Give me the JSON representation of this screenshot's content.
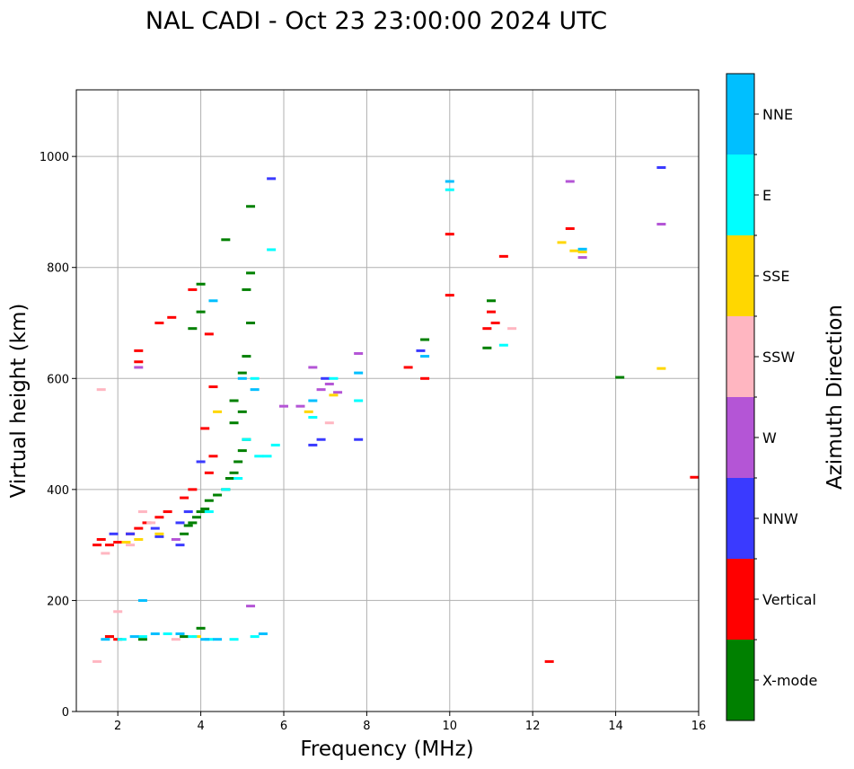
{
  "chart_data": {
    "type": "scatter",
    "title": "NAL CADI - Oct 23 23:00:00 2024 UTC",
    "xlabel": "Frequency (MHz)",
    "ylabel": "Virtual height (km)",
    "xlim": [
      1,
      16
    ],
    "ylim": [
      0,
      1120
    ],
    "xticks": [
      2,
      4,
      6,
      8,
      10,
      12,
      14,
      16
    ],
    "yticks": [
      0,
      200,
      400,
      600,
      800,
      1000
    ],
    "grid": true,
    "colorbar": {
      "label": "Azimuth Direction",
      "categories": [
        {
          "name": "X-mode",
          "color": "#008000"
        },
        {
          "name": "Vertical",
          "color": "#ff0000"
        },
        {
          "name": "NNW",
          "color": "#3a3aff"
        },
        {
          "name": "W",
          "color": "#b455d6"
        },
        {
          "name": "SSW",
          "color": "#ffb6c1"
        },
        {
          "name": "SSE",
          "color": "#ffd700"
        },
        {
          "name": "E",
          "color": "#00ffff"
        },
        {
          "name": "NNE",
          "color": "#00bfff"
        }
      ]
    },
    "series": [
      {
        "name": "X-mode",
        "points": [
          [
            3.6,
            320
          ],
          [
            3.7,
            335
          ],
          [
            3.8,
            340
          ],
          [
            3.9,
            350
          ],
          [
            4.0,
            360
          ],
          [
            4.1,
            365
          ],
          [
            4.2,
            380
          ],
          [
            4.4,
            390
          ],
          [
            4.6,
            400
          ],
          [
            4.7,
            420
          ],
          [
            4.8,
            430
          ],
          [
            4.9,
            450
          ],
          [
            5.0,
            470
          ],
          [
            5.1,
            490
          ],
          [
            5.0,
            540
          ],
          [
            5.0,
            610
          ],
          [
            5.1,
            640
          ],
          [
            5.2,
            700
          ],
          [
            5.1,
            760
          ],
          [
            5.2,
            790
          ],
          [
            4.0,
            720
          ],
          [
            3.8,
            690
          ],
          [
            4.0,
            150
          ],
          [
            3.6,
            135
          ],
          [
            2.6,
            130
          ],
          [
            1.8,
            135
          ],
          [
            4.8,
            520
          ],
          [
            4.8,
            560
          ],
          [
            4.0,
            770
          ],
          [
            4.6,
            850
          ],
          [
            5.2,
            910
          ],
          [
            9.4,
            670
          ],
          [
            10.9,
            655
          ],
          [
            14.1,
            602
          ],
          [
            11.0,
            740
          ]
        ]
      },
      {
        "name": "Vertical",
        "points": [
          [
            1.5,
            300
          ],
          [
            1.6,
            310
          ],
          [
            1.8,
            300
          ],
          [
            2.0,
            305
          ],
          [
            2.3,
            320
          ],
          [
            2.5,
            330
          ],
          [
            2.7,
            340
          ],
          [
            3.0,
            350
          ],
          [
            3.2,
            360
          ],
          [
            3.6,
            385
          ],
          [
            3.8,
            400
          ],
          [
            4.2,
            430
          ],
          [
            4.3,
            460
          ],
          [
            1.8,
            135
          ],
          [
            2.0,
            130
          ],
          [
            2.5,
            650
          ],
          [
            2.5,
            630
          ],
          [
            3.0,
            700
          ],
          [
            3.3,
            710
          ],
          [
            3.8,
            760
          ],
          [
            4.2,
            680
          ],
          [
            4.3,
            585
          ],
          [
            4.1,
            510
          ],
          [
            9.0,
            620
          ],
          [
            9.4,
            600
          ],
          [
            10.0,
            860
          ],
          [
            10.0,
            750
          ],
          [
            10.9,
            690
          ],
          [
            11.1,
            700
          ],
          [
            11.0,
            720
          ],
          [
            11.3,
            820
          ],
          [
            12.4,
            90
          ],
          [
            12.9,
            870
          ],
          [
            15.9,
            422
          ]
        ]
      },
      {
        "name": "NNW",
        "points": [
          [
            1.9,
            320
          ],
          [
            2.3,
            320
          ],
          [
            2.9,
            330
          ],
          [
            3.0,
            315
          ],
          [
            3.5,
            340
          ],
          [
            3.7,
            360
          ],
          [
            4.0,
            450
          ],
          [
            6.7,
            480
          ],
          [
            6.9,
            490
          ],
          [
            7.8,
            490
          ],
          [
            5.7,
            960
          ],
          [
            15.1,
            980
          ],
          [
            9.3,
            650
          ],
          [
            7.0,
            600
          ],
          [
            3.5,
            300
          ]
        ]
      },
      {
        "name": "W",
        "points": [
          [
            2.5,
            620
          ],
          [
            6.7,
            620
          ],
          [
            6.9,
            580
          ],
          [
            7.1,
            590
          ],
          [
            7.3,
            575
          ],
          [
            7.8,
            645
          ],
          [
            6.4,
            550
          ],
          [
            6.0,
            550
          ],
          [
            12.9,
            955
          ],
          [
            13.2,
            818
          ],
          [
            15.1,
            878
          ],
          [
            3.4,
            310
          ],
          [
            5.2,
            190
          ]
        ]
      },
      {
        "name": "SSW",
        "points": [
          [
            1.5,
            90
          ],
          [
            1.6,
            580
          ],
          [
            2.0,
            180
          ],
          [
            2.3,
            300
          ],
          [
            2.6,
            360
          ],
          [
            2.8,
            340
          ],
          [
            3.4,
            130
          ],
          [
            7.1,
            520
          ],
          [
            11.5,
            690
          ],
          [
            1.7,
            285
          ]
        ]
      },
      {
        "name": "SSE",
        "points": [
          [
            2.2,
            305
          ],
          [
            2.5,
            310
          ],
          [
            3.0,
            320
          ],
          [
            6.6,
            540
          ],
          [
            7.2,
            570
          ],
          [
            12.7,
            845
          ],
          [
            13.0,
            830
          ],
          [
            13.2,
            828
          ],
          [
            15.1,
            618
          ],
          [
            4.4,
            540
          ],
          [
            3.9,
            135
          ]
        ]
      },
      {
        "name": "E",
        "points": [
          [
            2.1,
            130
          ],
          [
            2.6,
            135
          ],
          [
            3.2,
            140
          ],
          [
            3.8,
            135
          ],
          [
            4.2,
            130
          ],
          [
            4.8,
            130
          ],
          [
            5.3,
            135
          ],
          [
            4.2,
            360
          ],
          [
            4.6,
            400
          ],
          [
            4.9,
            420
          ],
          [
            5.1,
            490
          ],
          [
            5.4,
            460
          ],
          [
            5.6,
            460
          ],
          [
            5.8,
            480
          ],
          [
            5.3,
            600
          ],
          [
            6.7,
            530
          ],
          [
            7.2,
            600
          ],
          [
            7.8,
            560
          ],
          [
            5.7,
            832
          ],
          [
            10.0,
            940
          ],
          [
            11.3,
            660
          ]
        ]
      },
      {
        "name": "NNE",
        "points": [
          [
            1.7,
            130
          ],
          [
            2.4,
            135
          ],
          [
            2.9,
            140
          ],
          [
            3.5,
            140
          ],
          [
            4.1,
            130
          ],
          [
            4.4,
            130
          ],
          [
            5.0,
            600
          ],
          [
            5.3,
            580
          ],
          [
            4.3,
            740
          ],
          [
            2.6,
            200
          ],
          [
            6.7,
            560
          ],
          [
            9.4,
            640
          ],
          [
            10.0,
            955
          ],
          [
            13.2,
            833
          ],
          [
            7.8,
            610
          ],
          [
            5.5,
            140
          ]
        ]
      }
    ]
  }
}
